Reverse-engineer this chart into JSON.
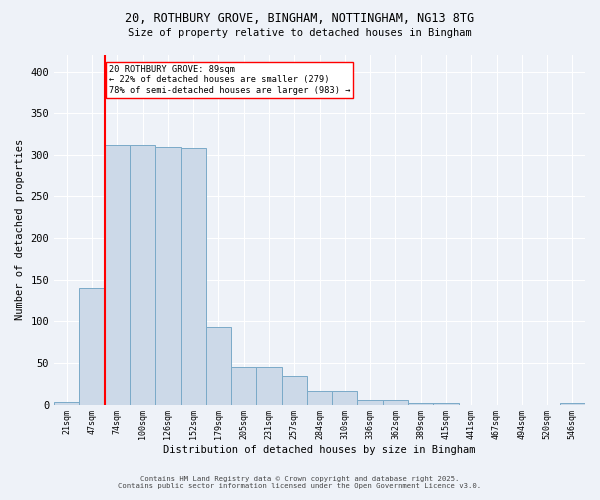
{
  "title_line1": "20, ROTHBURY GROVE, BINGHAM, NOTTINGHAM, NG13 8TG",
  "title_line2": "Size of property relative to detached houses in Bingham",
  "xlabel": "Distribution of detached houses by size in Bingham",
  "ylabel": "Number of detached properties",
  "bar_labels": [
    "21sqm",
    "47sqm",
    "74sqm",
    "100sqm",
    "126sqm",
    "152sqm",
    "179sqm",
    "205sqm",
    "231sqm",
    "257sqm",
    "284sqm",
    "310sqm",
    "336sqm",
    "362sqm",
    "389sqm",
    "415sqm",
    "441sqm",
    "467sqm",
    "494sqm",
    "520sqm",
    "546sqm"
  ],
  "bar_values": [
    3,
    140,
    312,
    312,
    310,
    308,
    93,
    45,
    45,
    34,
    16,
    16,
    5,
    5,
    2,
    2,
    0,
    0,
    0,
    0,
    2
  ],
  "bar_color": "#ccd9e8",
  "bar_edge_color": "#7aaac8",
  "background_color": "#eef2f8",
  "vline_color": "red",
  "annotation_text": "20 ROTHBURY GROVE: 89sqm\n← 22% of detached houses are smaller (279)\n78% of semi-detached houses are larger (983) →",
  "ylim": [
    0,
    420
  ],
  "yticks": [
    0,
    50,
    100,
    150,
    200,
    250,
    300,
    350,
    400
  ],
  "footnote1": "Contains HM Land Registry data © Crown copyright and database right 2025.",
  "footnote2": "Contains public sector information licensed under the Open Government Licence v3.0."
}
